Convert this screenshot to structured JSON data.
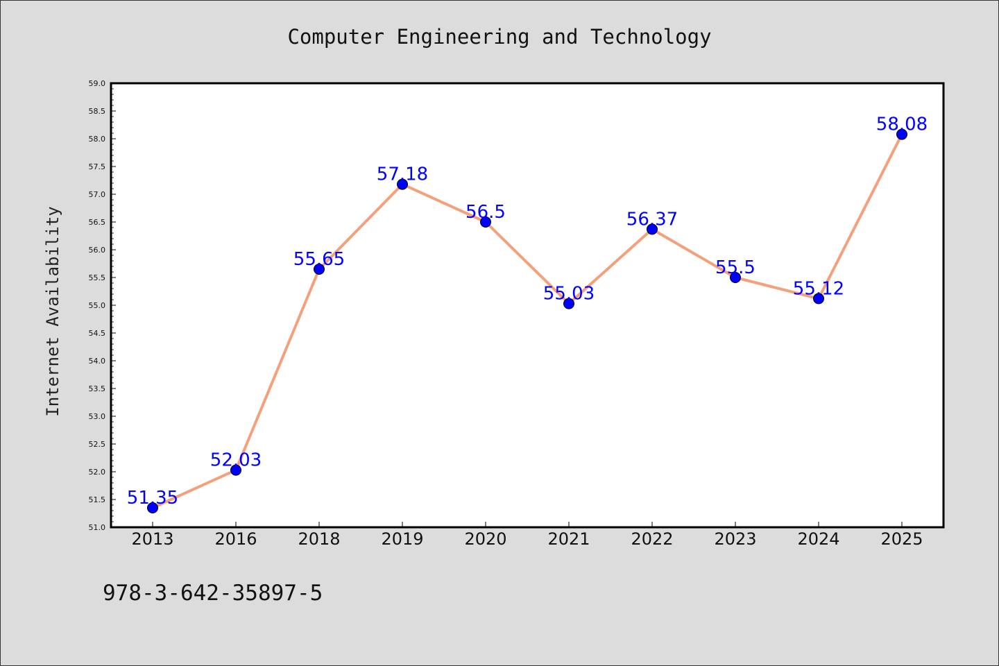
{
  "chart_data": {
    "type": "line",
    "title": "Computer Engineering and Technology",
    "ylabel": "Internet Availability",
    "xlabel": "",
    "categories": [
      "2013",
      "2016",
      "2018",
      "2019",
      "2020",
      "2021",
      "2022",
      "2023",
      "2024",
      "2025"
    ],
    "values": [
      51.35,
      52.03,
      55.65,
      57.18,
      56.5,
      55.03,
      56.37,
      55.5,
      55.12,
      58.08
    ],
    "value_labels": [
      "51.35",
      "52.03",
      "55.65",
      "57.18",
      "56.5",
      "55.03",
      "56.37",
      "55.5",
      "55.12",
      "58.08"
    ],
    "ylim": [
      51.0,
      59.0
    ],
    "yticks": [
      "51.0",
      "51.5",
      "52.0",
      "52.5",
      "53.0",
      "53.5",
      "54.0",
      "54.5",
      "55.0",
      "55.5",
      "56.0",
      "56.5",
      "57.0",
      "57.5",
      "58.0",
      "58.5",
      "59.0"
    ],
    "grid": false,
    "line_color": "#f4a07a",
    "marker_color": "#0000ff",
    "label_color": "#0000ff",
    "background": "#dcdcdc",
    "plot_background": "#ffffff"
  },
  "footer_text": "978-3-642-35897-5"
}
